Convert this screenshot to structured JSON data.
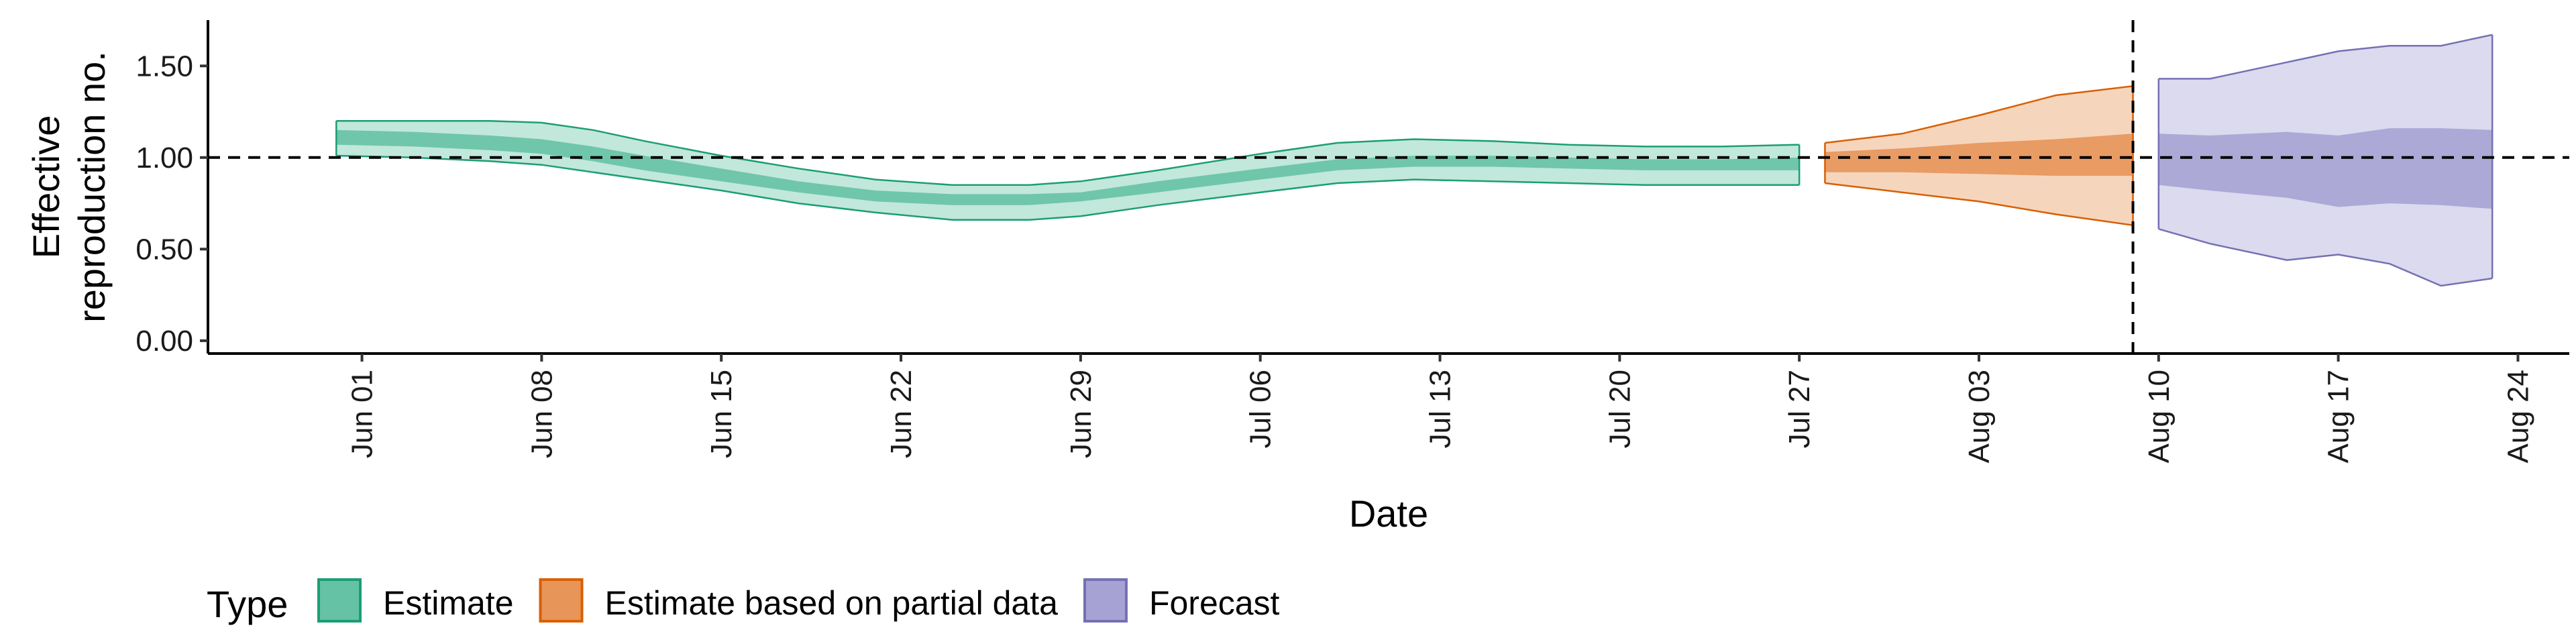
{
  "chart_data": {
    "type": "area",
    "xlabel": "Date",
    "ylabel_lines": [
      "Effective",
      "reproduction no."
    ],
    "y_ticks": [
      "0.00",
      "0.50",
      "1.00",
      "1.50"
    ],
    "y_tick_values": [
      0,
      0.5,
      1.0,
      1.5
    ],
    "ylim": [
      -0.07,
      1.75
    ],
    "x_ticks": [
      "Jun 01",
      "Jun 08",
      "Jun 15",
      "Jun 22",
      "Jun 29",
      "Jul 06",
      "Jul 13",
      "Jul 20",
      "Jul 27",
      "Aug 03",
      "Aug 10",
      "Aug 17",
      "Aug 24"
    ],
    "x_tick_dates": [
      "2020-06-01",
      "2020-06-08",
      "2020-06-15",
      "2020-06-22",
      "2020-06-29",
      "2020-07-06",
      "2020-07-13",
      "2020-07-20",
      "2020-07-27",
      "2020-08-03",
      "2020-08-10",
      "2020-08-17",
      "2020-08-24"
    ],
    "xlim": [
      "2020-05-26",
      "2020-08-26"
    ],
    "reference_line": {
      "y": 1.0,
      "style": "dashed"
    },
    "vertical_line": {
      "x": "2020-08-09",
      "style": "dashed"
    },
    "legend": {
      "title": "Type",
      "position": "bottom",
      "items": [
        {
          "label": "Estimate",
          "color": "#66c2a5",
          "border": "#1b9e77"
        },
        {
          "label": "Estimate based on partial data",
          "color": "#e8955a",
          "border": "#d95f02"
        },
        {
          "label": "Forecast",
          "color": "#a6a3d4",
          "border": "#7570b3"
        }
      ]
    },
    "series": [
      {
        "name": "Estimate",
        "color": "#66c2a5",
        "line_color": "#1b9e77",
        "points": [
          [
            "2020-05-31",
            1.2,
            1.15,
            1.07,
            1.01
          ],
          [
            "2020-06-03",
            1.2,
            1.14,
            1.06,
            1.0
          ],
          [
            "2020-06-06",
            1.2,
            1.12,
            1.04,
            0.98
          ],
          [
            "2020-06-08",
            1.19,
            1.1,
            1.02,
            0.96
          ],
          [
            "2020-06-10",
            1.15,
            1.06,
            0.98,
            0.92
          ],
          [
            "2020-06-12",
            1.09,
            1.01,
            0.93,
            0.88
          ],
          [
            "2020-06-15",
            1.01,
            0.94,
            0.87,
            0.82
          ],
          [
            "2020-06-18",
            0.94,
            0.87,
            0.81,
            0.75
          ],
          [
            "2020-06-21",
            0.88,
            0.82,
            0.76,
            0.7
          ],
          [
            "2020-06-24",
            0.85,
            0.8,
            0.74,
            0.66
          ],
          [
            "2020-06-27",
            0.85,
            0.8,
            0.74,
            0.66
          ],
          [
            "2020-06-29",
            0.87,
            0.81,
            0.76,
            0.68
          ],
          [
            "2020-07-02",
            0.93,
            0.87,
            0.81,
            0.74
          ],
          [
            "2020-07-06",
            1.02,
            0.94,
            0.88,
            0.81
          ],
          [
            "2020-07-09",
            1.08,
            0.99,
            0.93,
            0.86
          ],
          [
            "2020-07-12",
            1.1,
            1.01,
            0.95,
            0.88
          ],
          [
            "2020-07-15",
            1.09,
            1.01,
            0.95,
            0.87
          ],
          [
            "2020-07-18",
            1.07,
            1.0,
            0.94,
            0.86
          ],
          [
            "2020-07-21",
            1.06,
            0.99,
            0.93,
            0.85
          ],
          [
            "2020-07-24",
            1.06,
            0.99,
            0.93,
            0.85
          ],
          [
            "2020-07-27",
            1.07,
            1.0,
            0.93,
            0.85
          ]
        ]
      },
      {
        "name": "Estimate based on partial data",
        "color": "#e8955a",
        "line_color": "#d95f02",
        "points": [
          [
            "2020-07-28",
            1.08,
            1.03,
            0.92,
            0.86
          ],
          [
            "2020-07-31",
            1.13,
            1.05,
            0.92,
            0.81
          ],
          [
            "2020-08-03",
            1.23,
            1.08,
            0.91,
            0.76
          ],
          [
            "2020-08-06",
            1.34,
            1.1,
            0.9,
            0.69
          ],
          [
            "2020-08-09",
            1.39,
            1.13,
            0.9,
            0.63
          ]
        ]
      },
      {
        "name": "Forecast",
        "color": "#a6a3d4",
        "line_color": "#7570b3",
        "points": [
          [
            "2020-08-10",
            1.43,
            1.13,
            0.85,
            0.61
          ],
          [
            "2020-08-12",
            1.43,
            1.12,
            0.82,
            0.53
          ],
          [
            "2020-08-15",
            1.52,
            1.14,
            0.78,
            0.44
          ],
          [
            "2020-08-17",
            1.58,
            1.12,
            0.73,
            0.47
          ],
          [
            "2020-08-19",
            1.61,
            1.16,
            0.75,
            0.42
          ],
          [
            "2020-08-21",
            1.61,
            1.16,
            0.74,
            0.3
          ],
          [
            "2020-08-23",
            1.67,
            1.15,
            0.72,
            0.34
          ]
        ]
      }
    ]
  }
}
